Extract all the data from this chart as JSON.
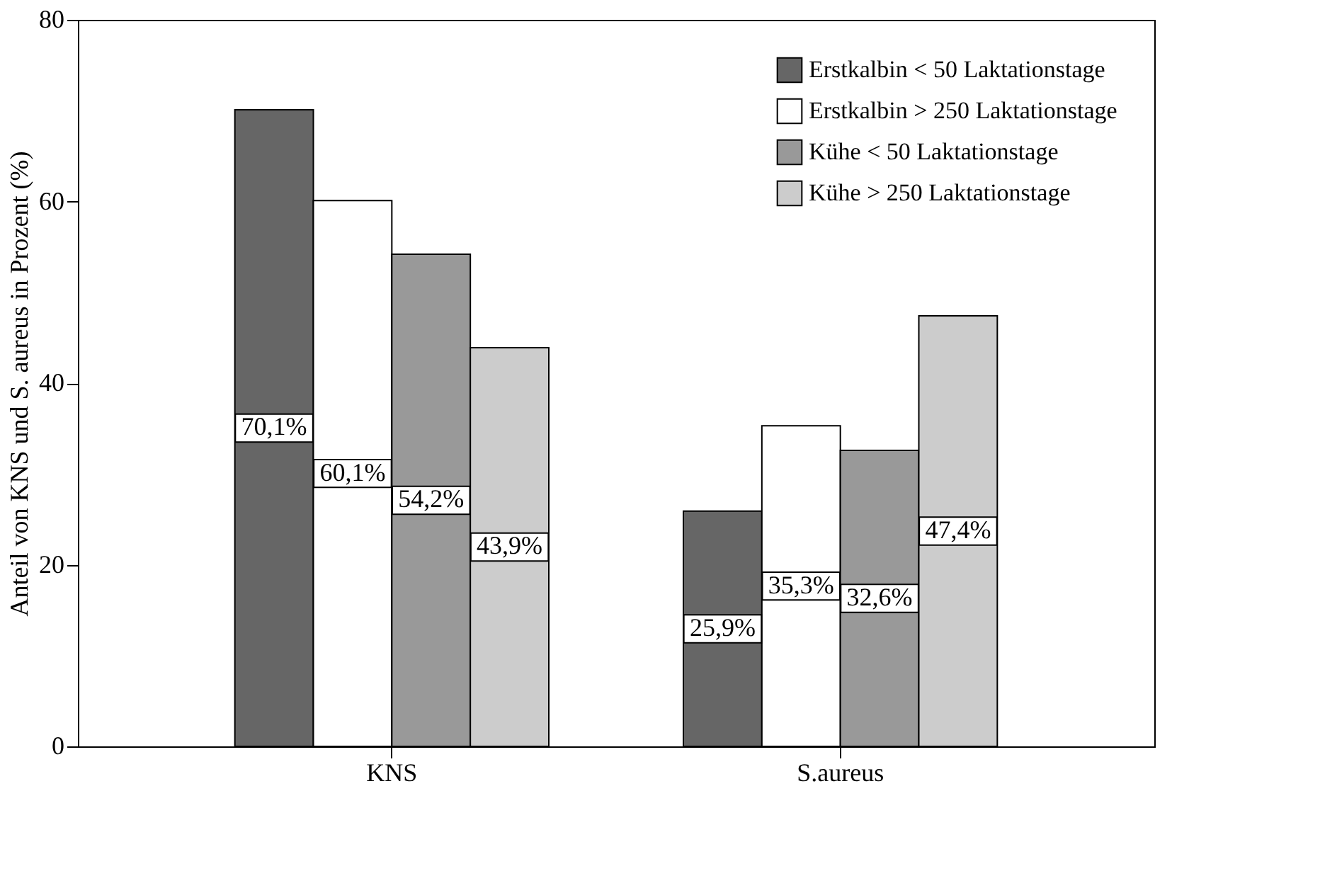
{
  "chart_data": {
    "type": "bar",
    "ylabel": "Anteil von KNS und S. aureus in Prozent (%)",
    "categories": [
      "KNS",
      "S.aureus"
    ],
    "series": [
      {
        "name": "Erstkalbin < 50 Laktationstage",
        "color": "#666666",
        "values": [
          70.1,
          25.9
        ],
        "value_labels": [
          "70,1%",
          "25,9%"
        ]
      },
      {
        "name": "Erstkalbin > 250 Laktationstage",
        "color": "#ffffff",
        "values": [
          60.1,
          35.3
        ],
        "value_labels": [
          "60,1%",
          "35,3%"
        ]
      },
      {
        "name": "Kühe < 50 Laktationstage",
        "color": "#999999",
        "values": [
          54.2,
          32.6
        ],
        "value_labels": [
          "54,2%",
          "32,6%"
        ]
      },
      {
        "name": "Kühe > 250 Laktationstage",
        "color": "#cccccc",
        "values": [
          43.9,
          47.4
        ],
        "value_labels": [
          "43,9%",
          "47,4%"
        ]
      }
    ],
    "ylim": [
      0,
      80
    ],
    "yticks": [
      0,
      20,
      40,
      60,
      80
    ],
    "grid": false,
    "legend": "top right"
  }
}
